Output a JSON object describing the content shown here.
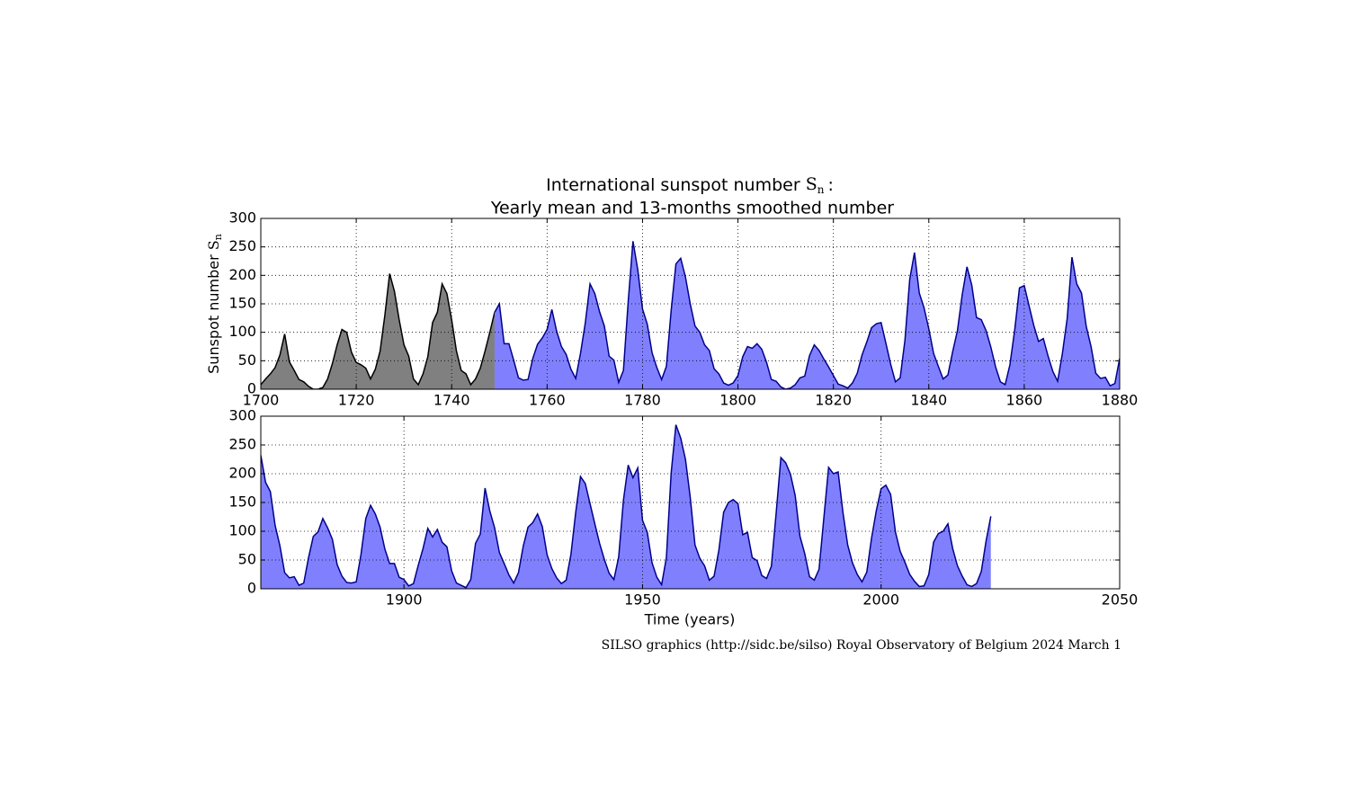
{
  "chart_data": [
    {
      "type": "area",
      "title": [
        "International sunspot number",
        "Yearly mean and 13-months smoothed number"
      ],
      "symbol": "S",
      "symbol_sub": "n",
      "title_suffix": ":",
      "ylabel": "Sunspot number",
      "xlim": [
        1700,
        1880
      ],
      "xticks": [
        1700,
        1720,
        1740,
        1760,
        1780,
        1800,
        1820,
        1840,
        1860,
        1880
      ],
      "ylim": [
        0,
        300
      ],
      "yticks": [
        0,
        50,
        100,
        150,
        200,
        250,
        300
      ],
      "grid": true,
      "series": [
        {
          "color": "#808080",
          "line_color": "#000000",
          "x": [
            1700,
            1701,
            1702,
            1703,
            1704,
            1705,
            1706,
            1707,
            1708,
            1709,
            1710,
            1711,
            1712,
            1713,
            1714,
            1715,
            1716,
            1717,
            1718,
            1719,
            1720,
            1721,
            1722,
            1723,
            1724,
            1725,
            1726,
            1727,
            1728,
            1729,
            1730,
            1731,
            1732,
            1733,
            1734,
            1735,
            1736,
            1737,
            1738,
            1739,
            1740,
            1741,
            1742,
            1743,
            1744,
            1745,
            1746,
            1747,
            1748,
            1749
          ],
          "values": [
            8,
            18,
            27,
            38,
            60,
            97,
            48,
            33,
            17,
            13,
            5,
            0,
            0,
            3,
            18,
            45,
            78,
            105,
            100,
            65,
            47,
            43,
            37,
            18,
            35,
            67,
            130,
            203,
            172,
            122,
            78,
            58,
            18,
            8,
            27,
            57,
            117,
            135,
            185,
            168,
            122,
            67,
            33,
            27,
            8,
            18,
            37,
            67,
            100,
            135
          ]
        },
        {
          "color": "#8080ff",
          "line_color": "#00008b",
          "x": [
            1749,
            1750,
            1751,
            1752,
            1753,
            1754,
            1755,
            1756,
            1757,
            1758,
            1759,
            1760,
            1761,
            1762,
            1763,
            1764,
            1765,
            1766,
            1767,
            1768,
            1769,
            1770,
            1771,
            1772,
            1773,
            1774,
            1775,
            1776,
            1777,
            1778,
            1779,
            1780,
            1781,
            1782,
            1783,
            1784,
            1785,
            1786,
            1787,
            1788,
            1789,
            1790,
            1791,
            1792,
            1793,
            1794,
            1795,
            1796,
            1797,
            1798,
            1799,
            1800,
            1801,
            1802,
            1803,
            1804,
            1805,
            1806,
            1807,
            1808,
            1809,
            1810,
            1811,
            1812,
            1813,
            1814,
            1815,
            1816,
            1817,
            1818,
            1819,
            1820,
            1821,
            1822,
            1823,
            1824,
            1825,
            1826,
            1827,
            1828,
            1829,
            1830,
            1831,
            1832,
            1833,
            1834,
            1835,
            1836,
            1837,
            1838,
            1839,
            1840,
            1841,
            1842,
            1843,
            1844,
            1845,
            1846,
            1847,
            1848,
            1849,
            1850,
            1851,
            1852,
            1853,
            1854,
            1855,
            1856,
            1857,
            1858,
            1859,
            1860,
            1861,
            1862,
            1863,
            1864,
            1865,
            1866,
            1867,
            1868,
            1869,
            1870,
            1871,
            1872,
            1873,
            1874,
            1875,
            1876,
            1877,
            1878,
            1879,
            1880
          ],
          "values": [
            135,
            150,
            80,
            80,
            51,
            20,
            16,
            17,
            54,
            79,
            90,
            105,
            140,
            102,
            75,
            61,
            35,
            19,
            63,
            116,
            185,
            168,
            136,
            111,
            58,
            51,
            12,
            33,
            154,
            260,
            210,
            141,
            114,
            64,
            38,
            17,
            40,
            138,
            220,
            230,
            197,
            150,
            111,
            100,
            78,
            68,
            36,
            27,
            11,
            7,
            11,
            24,
            57,
            75,
            72,
            80,
            70,
            47,
            17,
            14,
            4,
            0,
            2,
            8,
            20,
            23,
            59,
            78,
            68,
            53,
            39,
            24,
            9,
            6,
            2,
            11,
            28,
            60,
            83,
            108,
            115,
            117,
            81,
            44,
            13,
            20,
            86,
            193,
            240,
            169,
            143,
            106,
            63,
            40,
            18,
            25,
            66,
            103,
            166,
            215,
            183,
            126,
            122,
            103,
            74,
            39,
            13,
            8,
            43,
            104,
            178,
            182,
            147,
            112,
            84,
            89,
            58,
            31,
            14,
            63,
            124,
            232,
            185,
            169,
            110,
            75,
            28,
            19,
            21,
            6,
            10,
            54
          ]
        }
      ]
    },
    {
      "type": "area",
      "xlabel": "Time (years)",
      "note": "SILSO graphics (http://sidc.be/silso)  Royal Observatory of Belgium  2024 March 1",
      "xlim": [
        1870,
        2050
      ],
      "xticks": [
        1900,
        1950,
        2000,
        2050
      ],
      "ylim": [
        0,
        300
      ],
      "yticks": [
        0,
        50,
        100,
        150,
        200,
        250,
        300
      ],
      "grid": true,
      "series": [
        {
          "color": "#8080ff",
          "line_color": "#00008b",
          "x": [
            1870,
            1871,
            1872,
            1873,
            1874,
            1875,
            1876,
            1877,
            1878,
            1879,
            1880,
            1881,
            1882,
            1883,
            1884,
            1885,
            1886,
            1887,
            1888,
            1889,
            1890,
            1891,
            1892,
            1893,
            1894,
            1895,
            1896,
            1897,
            1898,
            1899,
            1900,
            1901,
            1902,
            1903,
            1904,
            1905,
            1906,
            1907,
            1908,
            1909,
            1910,
            1911,
            1912,
            1913,
            1914,
            1915,
            1916,
            1917,
            1918,
            1919,
            1920,
            1921,
            1922,
            1923,
            1924,
            1925,
            1926,
            1927,
            1928,
            1929,
            1930,
            1931,
            1932,
            1933,
            1934,
            1935,
            1936,
            1937,
            1938,
            1939,
            1940,
            1941,
            1942,
            1943,
            1944,
            1945,
            1946,
            1947,
            1948,
            1949,
            1950,
            1951,
            1952,
            1953,
            1954,
            1955,
            1956,
            1957,
            1958,
            1959,
            1960,
            1961,
            1962,
            1963,
            1964,
            1965,
            1966,
            1967,
            1968,
            1969,
            1970,
            1971,
            1972,
            1973,
            1974,
            1975,
            1976,
            1977,
            1978,
            1979,
            1980,
            1981,
            1982,
            1983,
            1984,
            1985,
            1986,
            1987,
            1988,
            1989,
            1990,
            1991,
            1992,
            1993,
            1994,
            1995,
            1996,
            1997,
            1998,
            1999,
            2000,
            2001,
            2002,
            2003,
            2004,
            2005,
            2006,
            2007,
            2008,
            2009,
            2010,
            2011,
            2012,
            2013,
            2014,
            2015,
            2016,
            2017,
            2018,
            2019,
            2020,
            2021,
            2022,
            2023
          ],
          "values": [
            232,
            185,
            169,
            110,
            75,
            28,
            19,
            21,
            6,
            10,
            54,
            91,
            99,
            122,
            106,
            86,
            42,
            22,
            11,
            10,
            12,
            60,
            122,
            145,
            130,
            107,
            69,
            44,
            44,
            20,
            16,
            5,
            9,
            41,
            70,
            105,
            90,
            103,
            81,
            73,
            31,
            10,
            6,
            2,
            16,
            79,
            95,
            175,
            135,
            106,
            63,
            44,
            24,
            10,
            28,
            74,
            107,
            115,
            130,
            108,
            59,
            35,
            19,
            9,
            15,
            60,
            133,
            195,
            183,
            148,
            113,
            79,
            51,
            27,
            16,
            55,
            154,
            215,
            193,
            210,
            119,
            98,
            45,
            20,
            7,
            54,
            201,
            285,
            262,
            225,
            159,
            76,
            53,
            40,
            15,
            22,
            67,
            133,
            150,
            155,
            148,
            94,
            98,
            54,
            49,
            23,
            18,
            39,
            131,
            228,
            219,
            199,
            162,
            91,
            61,
            21,
            15,
            34,
            123,
            211,
            200,
            203,
            133,
            76,
            45,
            25,
            12,
            29,
            88,
            136,
            174,
            180,
            164,
            99,
            65,
            46,
            25,
            13,
            4,
            5,
            25,
            81,
            96,
            100,
            113,
            70,
            40,
            22,
            7,
            4,
            9,
            30,
            83,
            126
          ]
        }
      ]
    }
  ]
}
